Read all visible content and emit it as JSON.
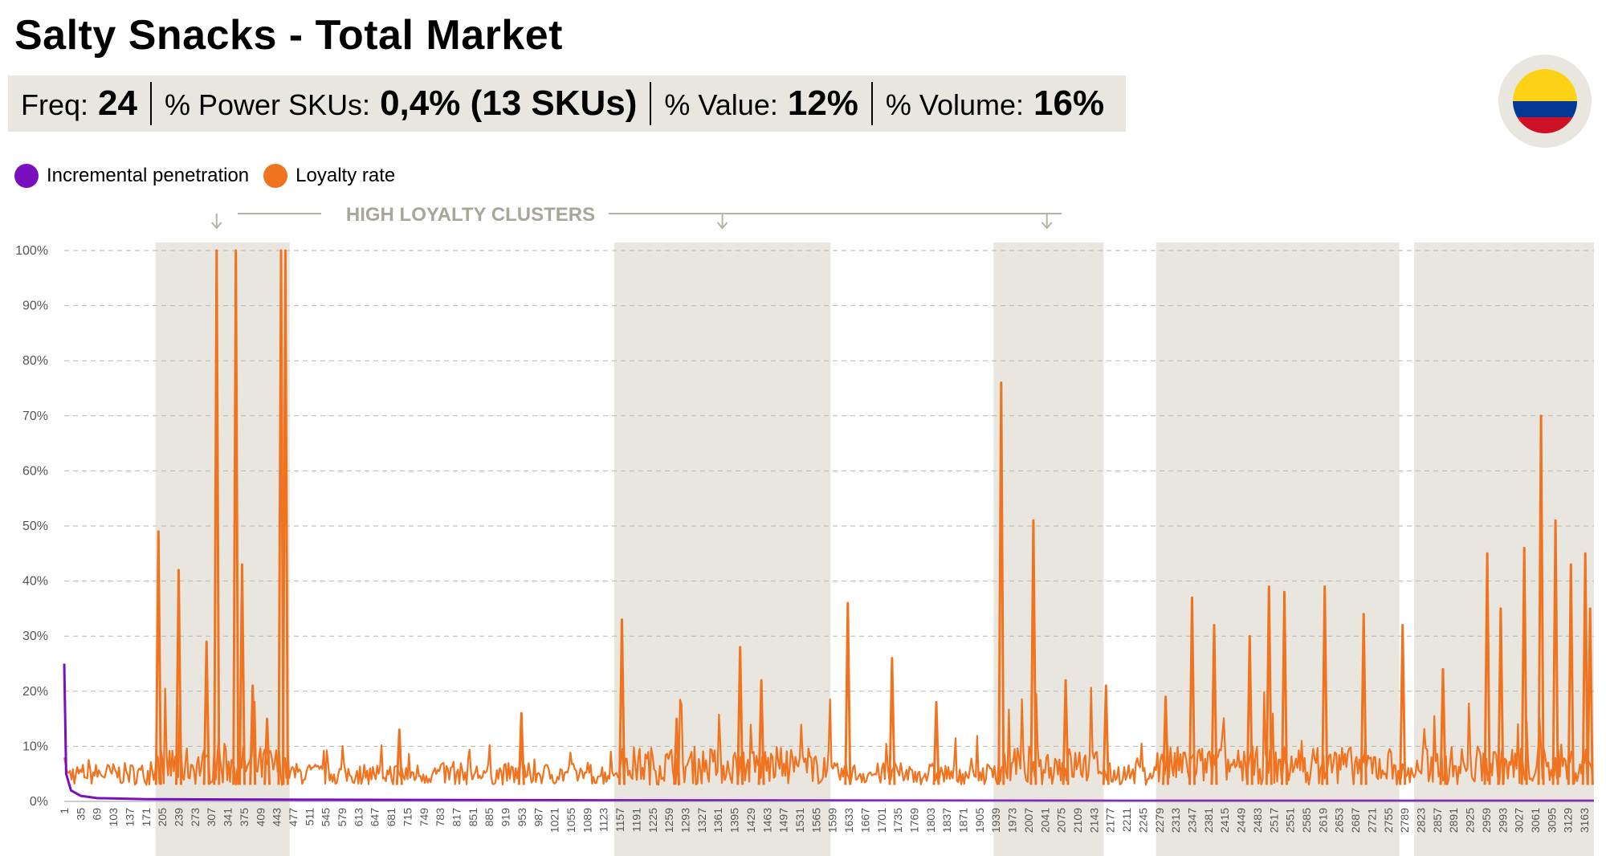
{
  "title": "Salty Snacks - Total Market",
  "kpis": [
    {
      "label": "Freq:",
      "value": "24"
    },
    {
      "label": "% Power SKUs:",
      "value": "0,4% (13 SKUs)"
    },
    {
      "label": "% Value:",
      "value": "12%"
    },
    {
      "label": "% Volume:",
      "value": "16%"
    }
  ],
  "flag": {
    "country_icon": "colombia-flag-icon",
    "colors": [
      "#fcd116",
      "#003893",
      "#ce1126"
    ]
  },
  "chart_data": {
    "type": "line",
    "annotation": "HIGH LOYALTY CLUSTERS",
    "series": [
      {
        "name": "Incremental penetration",
        "color": "#7a0fbf",
        "points": [
          [
            1,
            25
          ],
          [
            5,
            5
          ],
          [
            15,
            2
          ],
          [
            35,
            1
          ],
          [
            69,
            0.6
          ],
          [
            171,
            0.4
          ],
          [
            545,
            0.3
          ],
          [
            1123,
            0.2
          ],
          [
            2245,
            0.1
          ],
          [
            3183,
            0.1
          ]
        ]
      },
      {
        "name": "Loyalty rate",
        "color": "#f07320",
        "baseline": 3,
        "peaks": [
          [
            197,
            49
          ],
          [
            239,
            42
          ],
          [
            297,
            29
          ],
          [
            318,
            100
          ],
          [
            358,
            100
          ],
          [
            371,
            43
          ],
          [
            393,
            21
          ],
          [
            423,
            15
          ],
          [
            452,
            100
          ],
          [
            461,
            100
          ],
          [
            698,
            13
          ],
          [
            952,
            16
          ],
          [
            1161,
            33
          ],
          [
            1275,
            15
          ],
          [
            1407,
            28
          ],
          [
            1451,
            22
          ],
          [
            1631,
            36
          ],
          [
            1723,
            26
          ],
          [
            1815,
            18
          ],
          [
            1950,
            76
          ],
          [
            2017,
            51
          ],
          [
            2084,
            22
          ],
          [
            2168,
            21
          ],
          [
            2292,
            19
          ],
          [
            2347,
            37
          ],
          [
            2393,
            32
          ],
          [
            2467,
            30
          ],
          [
            2507,
            39
          ],
          [
            2539,
            38
          ],
          [
            2623,
            39
          ],
          [
            2704,
            34
          ],
          [
            2785,
            32
          ],
          [
            2869,
            24
          ],
          [
            2961,
            45
          ],
          [
            2989,
            35
          ],
          [
            3038,
            46
          ],
          [
            3073,
            70
          ],
          [
            3103,
            51
          ],
          [
            3135,
            43
          ],
          [
            3165,
            45
          ],
          [
            3175,
            35
          ]
        ]
      }
    ],
    "y_ticks": [
      "0%",
      "10%",
      "20%",
      "30%",
      "40%",
      "50%",
      "60%",
      "70%",
      "80%",
      "90%",
      "100%"
    ],
    "ylim": [
      0,
      100
    ],
    "x_ticks": [
      1,
      35,
      69,
      103,
      137,
      171,
      205,
      239,
      273,
      307,
      341,
      375,
      409,
      443,
      477,
      511,
      545,
      579,
      613,
      647,
      681,
      715,
      749,
      783,
      817,
      851,
      885,
      919,
      953,
      987,
      1021,
      1055,
      1089,
      1123,
      1157,
      1191,
      1225,
      1259,
      1293,
      1327,
      1361,
      1395,
      1429,
      1463,
      1497,
      1531,
      1565,
      1599,
      1633,
      1667,
      1701,
      1735,
      1769,
      1803,
      1837,
      1871,
      1905,
      1939,
      1973,
      2007,
      2041,
      2075,
      2109,
      2143,
      2177,
      2211,
      2245,
      2279,
      2313,
      2347,
      2381,
      2415,
      2449,
      2483,
      2517,
      2551,
      2585,
      2619,
      2653,
      2687,
      2721,
      2755,
      2789,
      2823,
      2857,
      2891,
      2925,
      2959,
      2993,
      3027,
      3061,
      3095,
      3129,
      3163
    ],
    "xlim": [
      1,
      3183
    ],
    "highlight_clusters": [
      [
        191,
        470
      ],
      [
        1145,
        1595
      ],
      [
        1934,
        2163
      ],
      [
        2272,
        2778
      ],
      [
        2809,
        3183
      ]
    ],
    "grid": "horizontal dashed"
  }
}
